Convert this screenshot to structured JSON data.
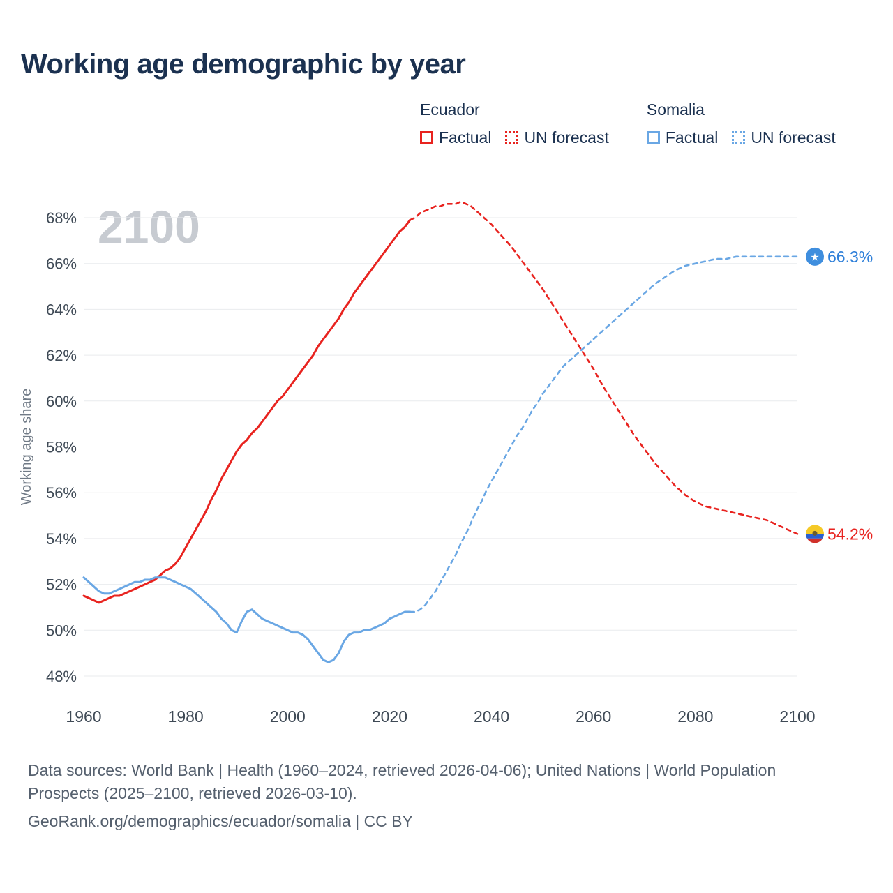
{
  "page": {
    "title": "Working age demographic by year"
  },
  "legend": {
    "groups": [
      {
        "name": "Ecuador",
        "color": "#e8231f",
        "items": [
          {
            "label": "Factual",
            "style": "solid"
          },
          {
            "label": "UN forecast",
            "style": "dotted"
          }
        ]
      },
      {
        "name": "Somalia",
        "color": "#6aa7e4",
        "items": [
          {
            "label": "Factual",
            "style": "solid"
          },
          {
            "label": "UN forecast",
            "style": "dotted"
          }
        ]
      }
    ]
  },
  "footer": {
    "sources": "Data sources: World Bank | Health (1960–2024, retrieved 2026-04-06); United Nations | World Population Prospects (2025–2100, retrieved 2026-03-10).",
    "attribution": "GeoRank.org/demographics/ecuador/somalia | CC BY"
  },
  "icons": {
    "somalia_flag_star": "★"
  },
  "chart_data": {
    "type": "line",
    "title": "Working age demographic by year",
    "xlabel": "",
    "ylabel": "Working age share",
    "watermark": "2100",
    "x_range": [
      1960,
      2100
    ],
    "y_range": [
      48,
      68
    ],
    "x_ticks": [
      1960,
      1980,
      2000,
      2020,
      2040,
      2060,
      2080,
      2100
    ],
    "y_ticks": [
      48,
      50,
      52,
      54,
      56,
      58,
      60,
      62,
      64,
      66,
      68
    ],
    "y_tick_suffix": "%",
    "grid": "horizontal",
    "legend_position": "top-right",
    "series": [
      {
        "name": "Ecuador Factual",
        "color": "#e8231f",
        "style": "solid",
        "points": [
          [
            1960,
            51.5
          ],
          [
            1961,
            51.4
          ],
          [
            1962,
            51.3
          ],
          [
            1963,
            51.2
          ],
          [
            1964,
            51.3
          ],
          [
            1965,
            51.4
          ],
          [
            1966,
            51.5
          ],
          [
            1967,
            51.5
          ],
          [
            1968,
            51.6
          ],
          [
            1969,
            51.7
          ],
          [
            1970,
            51.8
          ],
          [
            1971,
            51.9
          ],
          [
            1972,
            52.0
          ],
          [
            1973,
            52.1
          ],
          [
            1974,
            52.2
          ],
          [
            1975,
            52.4
          ],
          [
            1976,
            52.6
          ],
          [
            1977,
            52.7
          ],
          [
            1978,
            52.9
          ],
          [
            1979,
            53.2
          ],
          [
            1980,
            53.6
          ],
          [
            1981,
            54.0
          ],
          [
            1982,
            54.4
          ],
          [
            1983,
            54.8
          ],
          [
            1984,
            55.2
          ],
          [
            1985,
            55.7
          ],
          [
            1986,
            56.1
          ],
          [
            1987,
            56.6
          ],
          [
            1988,
            57.0
          ],
          [
            1989,
            57.4
          ],
          [
            1990,
            57.8
          ],
          [
            1991,
            58.1
          ],
          [
            1992,
            58.3
          ],
          [
            1993,
            58.6
          ],
          [
            1994,
            58.8
          ],
          [
            1995,
            59.1
          ],
          [
            1996,
            59.4
          ],
          [
            1997,
            59.7
          ],
          [
            1998,
            60.0
          ],
          [
            1999,
            60.2
          ],
          [
            2000,
            60.5
          ],
          [
            2001,
            60.8
          ],
          [
            2002,
            61.1
          ],
          [
            2003,
            61.4
          ],
          [
            2004,
            61.7
          ],
          [
            2005,
            62.0
          ],
          [
            2006,
            62.4
          ],
          [
            2007,
            62.7
          ],
          [
            2008,
            63.0
          ],
          [
            2009,
            63.3
          ],
          [
            2010,
            63.6
          ],
          [
            2011,
            64.0
          ],
          [
            2012,
            64.3
          ],
          [
            2013,
            64.7
          ],
          [
            2014,
            65.0
          ],
          [
            2015,
            65.3
          ],
          [
            2016,
            65.6
          ],
          [
            2017,
            65.9
          ],
          [
            2018,
            66.2
          ],
          [
            2019,
            66.5
          ],
          [
            2020,
            66.8
          ],
          [
            2021,
            67.1
          ],
          [
            2022,
            67.4
          ],
          [
            2023,
            67.6
          ],
          [
            2024,
            67.9
          ]
        ]
      },
      {
        "name": "Ecuador UN forecast",
        "color": "#e8231f",
        "style": "dashed",
        "points": [
          [
            2024,
            67.9
          ],
          [
            2025,
            68.0
          ],
          [
            2026,
            68.2
          ],
          [
            2027,
            68.3
          ],
          [
            2028,
            68.4
          ],
          [
            2029,
            68.5
          ],
          [
            2030,
            68.5
          ],
          [
            2031,
            68.6
          ],
          [
            2032,
            68.6
          ],
          [
            2033,
            68.6
          ],
          [
            2034,
            68.7
          ],
          [
            2035,
            68.6
          ],
          [
            2036,
            68.5
          ],
          [
            2037,
            68.3
          ],
          [
            2038,
            68.1
          ],
          [
            2039,
            67.9
          ],
          [
            2040,
            67.7
          ],
          [
            2042,
            67.2
          ],
          [
            2044,
            66.7
          ],
          [
            2046,
            66.1
          ],
          [
            2048,
            65.5
          ],
          [
            2050,
            64.9
          ],
          [
            2052,
            64.2
          ],
          [
            2054,
            63.5
          ],
          [
            2056,
            62.8
          ],
          [
            2058,
            62.1
          ],
          [
            2060,
            61.4
          ],
          [
            2062,
            60.6
          ],
          [
            2064,
            59.9
          ],
          [
            2066,
            59.2
          ],
          [
            2068,
            58.5
          ],
          [
            2070,
            57.9
          ],
          [
            2072,
            57.3
          ],
          [
            2074,
            56.8
          ],
          [
            2076,
            56.3
          ],
          [
            2078,
            55.9
          ],
          [
            2080,
            55.6
          ],
          [
            2082,
            55.4
          ],
          [
            2084,
            55.3
          ],
          [
            2086,
            55.2
          ],
          [
            2088,
            55.1
          ],
          [
            2090,
            55.0
          ],
          [
            2092,
            54.9
          ],
          [
            2094,
            54.8
          ],
          [
            2096,
            54.6
          ],
          [
            2098,
            54.4
          ],
          [
            2100,
            54.2
          ]
        ]
      },
      {
        "name": "Somalia Factual",
        "color": "#6aa7e4",
        "style": "solid",
        "points": [
          [
            1960,
            52.3
          ],
          [
            1961,
            52.1
          ],
          [
            1962,
            51.9
          ],
          [
            1963,
            51.7
          ],
          [
            1964,
            51.6
          ],
          [
            1965,
            51.6
          ],
          [
            1966,
            51.7
          ],
          [
            1967,
            51.8
          ],
          [
            1968,
            51.9
          ],
          [
            1969,
            52.0
          ],
          [
            1970,
            52.1
          ],
          [
            1971,
            52.1
          ],
          [
            1972,
            52.2
          ],
          [
            1973,
            52.2
          ],
          [
            1974,
            52.3
          ],
          [
            1975,
            52.3
          ],
          [
            1976,
            52.3
          ],
          [
            1977,
            52.2
          ],
          [
            1978,
            52.1
          ],
          [
            1979,
            52.0
          ],
          [
            1980,
            51.9
          ],
          [
            1981,
            51.8
          ],
          [
            1982,
            51.6
          ],
          [
            1983,
            51.4
          ],
          [
            1984,
            51.2
          ],
          [
            1985,
            51.0
          ],
          [
            1986,
            50.8
          ],
          [
            1987,
            50.5
          ],
          [
            1988,
            50.3
          ],
          [
            1989,
            50.0
          ],
          [
            1990,
            49.9
          ],
          [
            1991,
            50.4
          ],
          [
            1992,
            50.8
          ],
          [
            1993,
            50.9
          ],
          [
            1994,
            50.7
          ],
          [
            1995,
            50.5
          ],
          [
            1996,
            50.4
          ],
          [
            1997,
            50.3
          ],
          [
            1998,
            50.2
          ],
          [
            1999,
            50.1
          ],
          [
            2000,
            50.0
          ],
          [
            2001,
            49.9
          ],
          [
            2002,
            49.9
          ],
          [
            2003,
            49.8
          ],
          [
            2004,
            49.6
          ],
          [
            2005,
            49.3
          ],
          [
            2006,
            49.0
          ],
          [
            2007,
            48.7
          ],
          [
            2008,
            48.6
          ],
          [
            2009,
            48.7
          ],
          [
            2010,
            49.0
          ],
          [
            2011,
            49.5
          ],
          [
            2012,
            49.8
          ],
          [
            2013,
            49.9
          ],
          [
            2014,
            49.9
          ],
          [
            2015,
            50.0
          ],
          [
            2016,
            50.0
          ],
          [
            2017,
            50.1
          ],
          [
            2018,
            50.2
          ],
          [
            2019,
            50.3
          ],
          [
            2020,
            50.5
          ],
          [
            2021,
            50.6
          ],
          [
            2022,
            50.7
          ],
          [
            2023,
            50.8
          ],
          [
            2024,
            50.8
          ]
        ]
      },
      {
        "name": "Somalia UN forecast",
        "color": "#6aa7e4",
        "style": "dashed",
        "points": [
          [
            2024,
            50.8
          ],
          [
            2025,
            50.8
          ],
          [
            2026,
            50.9
          ],
          [
            2027,
            51.1
          ],
          [
            2028,
            51.4
          ],
          [
            2029,
            51.7
          ],
          [
            2030,
            52.1
          ],
          [
            2031,
            52.5
          ],
          [
            2032,
            52.9
          ],
          [
            2033,
            53.3
          ],
          [
            2034,
            53.8
          ],
          [
            2035,
            54.2
          ],
          [
            2036,
            54.7
          ],
          [
            2037,
            55.2
          ],
          [
            2038,
            55.6
          ],
          [
            2039,
            56.1
          ],
          [
            2040,
            56.5
          ],
          [
            2041,
            56.9
          ],
          [
            2042,
            57.3
          ],
          [
            2043,
            57.7
          ],
          [
            2044,
            58.1
          ],
          [
            2045,
            58.5
          ],
          [
            2046,
            58.8
          ],
          [
            2047,
            59.2
          ],
          [
            2048,
            59.6
          ],
          [
            2049,
            59.9
          ],
          [
            2050,
            60.3
          ],
          [
            2051,
            60.6
          ],
          [
            2052,
            60.9
          ],
          [
            2053,
            61.2
          ],
          [
            2054,
            61.5
          ],
          [
            2055,
            61.7
          ],
          [
            2056,
            61.9
          ],
          [
            2057,
            62.1
          ],
          [
            2058,
            62.3
          ],
          [
            2059,
            62.5
          ],
          [
            2060,
            62.7
          ],
          [
            2062,
            63.1
          ],
          [
            2064,
            63.5
          ],
          [
            2066,
            63.9
          ],
          [
            2068,
            64.3
          ],
          [
            2070,
            64.7
          ],
          [
            2072,
            65.1
          ],
          [
            2074,
            65.4
          ],
          [
            2076,
            65.7
          ],
          [
            2078,
            65.9
          ],
          [
            2080,
            66.0
          ],
          [
            2082,
            66.1
          ],
          [
            2084,
            66.2
          ],
          [
            2086,
            66.2
          ],
          [
            2088,
            66.3
          ],
          [
            2090,
            66.3
          ],
          [
            2092,
            66.3
          ],
          [
            2094,
            66.3
          ],
          [
            2096,
            66.3
          ],
          [
            2098,
            66.3
          ],
          [
            2100,
            66.3
          ]
        ]
      }
    ],
    "end_labels": [
      {
        "series": "Somalia",
        "text": "66.3%",
        "value": 66.3,
        "year": 2100,
        "text_color": "#2e7fd9",
        "flag": "somalia",
        "flag_color": "#3f8ede"
      },
      {
        "series": "Ecuador",
        "text": "54.2%",
        "value": 54.2,
        "year": 2100,
        "text_color": "#e8231f",
        "flag": "ecuador",
        "flag_colors": [
          "#f5c926",
          "#2a5fd0",
          "#d0302a"
        ]
      }
    ]
  }
}
